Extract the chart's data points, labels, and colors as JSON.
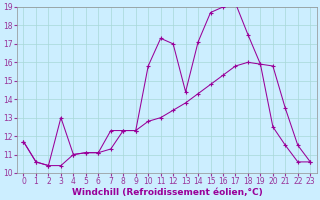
{
  "xlabel": "Windchill (Refroidissement éolien,°C)",
  "background_color": "#cceeff",
  "line_color": "#990099",
  "xlim": [
    -0.5,
    23.5
  ],
  "ylim": [
    10,
    19
  ],
  "xticks": [
    0,
    1,
    2,
    3,
    4,
    5,
    6,
    7,
    8,
    9,
    10,
    11,
    12,
    13,
    14,
    15,
    16,
    17,
    18,
    19,
    20,
    21,
    22,
    23
  ],
  "yticks": [
    10,
    11,
    12,
    13,
    14,
    15,
    16,
    17,
    18,
    19
  ],
  "series1_x": [
    0,
    1,
    2,
    3,
    4,
    5,
    6,
    7,
    8,
    9,
    10,
    11,
    12,
    13,
    14,
    15,
    16,
    17,
    18,
    19,
    20,
    21,
    22,
    23
  ],
  "series1_y": [
    11.7,
    10.6,
    10.4,
    13.0,
    11.0,
    11.1,
    11.1,
    12.3,
    12.3,
    12.3,
    15.8,
    17.3,
    17.0,
    14.4,
    17.1,
    18.7,
    19.0,
    19.2,
    17.5,
    15.9,
    12.5,
    11.5,
    10.6,
    10.6
  ],
  "series2_x": [
    0,
    1,
    2,
    3,
    4,
    5,
    6,
    7,
    8,
    9,
    10,
    11,
    12,
    13,
    14,
    15,
    16,
    17,
    18,
    19,
    20,
    21,
    22,
    23
  ],
  "series2_y": [
    11.7,
    10.6,
    10.4,
    10.4,
    11.0,
    11.1,
    11.1,
    11.3,
    12.3,
    12.3,
    12.8,
    13.0,
    13.4,
    13.8,
    14.3,
    14.8,
    15.3,
    15.8,
    16.0,
    15.9,
    15.8,
    13.5,
    11.5,
    10.6
  ],
  "font_size": 5.5,
  "xlabel_fontsize": 6.5,
  "marker": "P",
  "marker_size": 2.5,
  "linewidth": 0.75,
  "grid_color": "#a8d8d8",
  "tick_color": "#993399"
}
